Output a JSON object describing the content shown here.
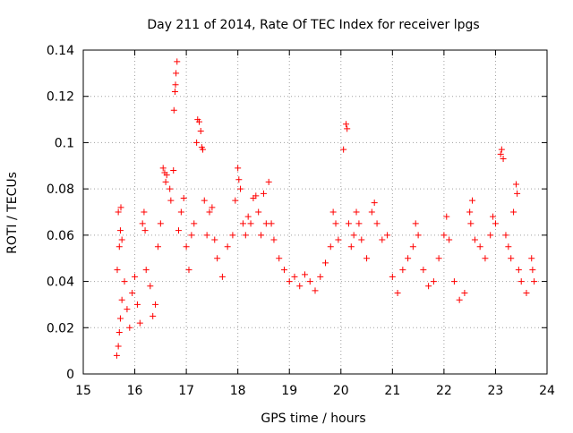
{
  "chart_data": {
    "type": "scatter",
    "title": "Day 211 of 2014, Rate Of TEC Index for receiver lpgs",
    "xlabel": "GPS time / hours",
    "ylabel": "ROTI / TECUs",
    "xlim": [
      15,
      24
    ],
    "ylim": [
      0,
      0.14
    ],
    "xticks": [
      "15",
      "16",
      "17",
      "18",
      "19",
      "20",
      "21",
      "22",
      "23",
      "24"
    ],
    "yticks": [
      "0",
      "0.02",
      "0.04",
      "0.06",
      "0.08",
      "0.1",
      "0.12",
      "0.14"
    ],
    "grid": true,
    "marker": "+",
    "color": "#ff0000",
    "series": [
      {
        "name": "ROTI",
        "points": [
          [
            15.65,
            0.008
          ],
          [
            15.68,
            0.012
          ],
          [
            15.7,
            0.018
          ],
          [
            15.72,
            0.024
          ],
          [
            15.75,
            0.032
          ],
          [
            15.66,
            0.045
          ],
          [
            15.7,
            0.055
          ],
          [
            15.72,
            0.062
          ],
          [
            15.68,
            0.07
          ],
          [
            15.73,
            0.072
          ],
          [
            15.75,
            0.058
          ],
          [
            15.8,
            0.04
          ],
          [
            15.85,
            0.028
          ],
          [
            15.9,
            0.02
          ],
          [
            15.95,
            0.035
          ],
          [
            16.0,
            0.042
          ],
          [
            16.05,
            0.03
          ],
          [
            16.1,
            0.022
          ],
          [
            16.15,
            0.065
          ],
          [
            16.18,
            0.07
          ],
          [
            16.2,
            0.062
          ],
          [
            16.22,
            0.045
          ],
          [
            16.3,
            0.038
          ],
          [
            16.35,
            0.025
          ],
          [
            16.4,
            0.03
          ],
          [
            16.45,
            0.055
          ],
          [
            16.5,
            0.065
          ],
          [
            16.55,
            0.089
          ],
          [
            16.58,
            0.087
          ],
          [
            16.6,
            0.083
          ],
          [
            16.62,
            0.086
          ],
          [
            16.68,
            0.08
          ],
          [
            16.7,
            0.075
          ],
          [
            16.75,
            0.088
          ],
          [
            16.76,
            0.114
          ],
          [
            16.78,
            0.122
          ],
          [
            16.8,
            0.13
          ],
          [
            16.82,
            0.135
          ],
          [
            16.79,
            0.125
          ],
          [
            16.85,
            0.062
          ],
          [
            16.9,
            0.07
          ],
          [
            16.95,
            0.076
          ],
          [
            17.0,
            0.055
          ],
          [
            17.05,
            0.045
          ],
          [
            17.1,
            0.06
          ],
          [
            17.15,
            0.065
          ],
          [
            17.2,
            0.1
          ],
          [
            17.22,
            0.11
          ],
          [
            17.25,
            0.109
          ],
          [
            17.28,
            0.105
          ],
          [
            17.3,
            0.098
          ],
          [
            17.32,
            0.097
          ],
          [
            17.35,
            0.075
          ],
          [
            17.4,
            0.06
          ],
          [
            17.45,
            0.07
          ],
          [
            17.5,
            0.072
          ],
          [
            17.55,
            0.058
          ],
          [
            17.6,
            0.05
          ],
          [
            17.7,
            0.042
          ],
          [
            17.8,
            0.055
          ],
          [
            17.9,
            0.06
          ],
          [
            17.95,
            0.075
          ],
          [
            18.0,
            0.089
          ],
          [
            18.02,
            0.084
          ],
          [
            18.05,
            0.08
          ],
          [
            18.1,
            0.065
          ],
          [
            18.15,
            0.06
          ],
          [
            18.2,
            0.068
          ],
          [
            18.25,
            0.065
          ],
          [
            18.3,
            0.076
          ],
          [
            18.35,
            0.077
          ],
          [
            18.4,
            0.07
          ],
          [
            18.45,
            0.06
          ],
          [
            18.5,
            0.078
          ],
          [
            18.55,
            0.065
          ],
          [
            18.6,
            0.083
          ],
          [
            18.65,
            0.065
          ],
          [
            18.7,
            0.058
          ],
          [
            18.8,
            0.05
          ],
          [
            18.9,
            0.045
          ],
          [
            19.0,
            0.04
          ],
          [
            19.1,
            0.042
          ],
          [
            19.2,
            0.038
          ],
          [
            19.3,
            0.043
          ],
          [
            19.4,
            0.04
          ],
          [
            19.5,
            0.036
          ],
          [
            19.6,
            0.042
          ],
          [
            19.7,
            0.048
          ],
          [
            19.8,
            0.055
          ],
          [
            19.85,
            0.07
          ],
          [
            19.9,
            0.065
          ],
          [
            19.95,
            0.058
          ],
          [
            20.05,
            0.097
          ],
          [
            20.1,
            0.108
          ],
          [
            20.12,
            0.106
          ],
          [
            20.15,
            0.065
          ],
          [
            20.2,
            0.055
          ],
          [
            20.25,
            0.06
          ],
          [
            20.3,
            0.07
          ],
          [
            20.35,
            0.065
          ],
          [
            20.4,
            0.058
          ],
          [
            20.5,
            0.05
          ],
          [
            20.6,
            0.07
          ],
          [
            20.65,
            0.074
          ],
          [
            20.7,
            0.065
          ],
          [
            20.8,
            0.058
          ],
          [
            20.9,
            0.06
          ],
          [
            21.0,
            0.042
          ],
          [
            21.1,
            0.035
          ],
          [
            21.2,
            0.045
          ],
          [
            21.3,
            0.05
          ],
          [
            21.4,
            0.055
          ],
          [
            21.45,
            0.065
          ],
          [
            21.5,
            0.06
          ],
          [
            21.6,
            0.045
          ],
          [
            21.7,
            0.038
          ],
          [
            21.8,
            0.04
          ],
          [
            21.9,
            0.05
          ],
          [
            22.0,
            0.06
          ],
          [
            22.05,
            0.068
          ],
          [
            22.1,
            0.058
          ],
          [
            22.2,
            0.04
          ],
          [
            22.3,
            0.032
          ],
          [
            22.4,
            0.035
          ],
          [
            22.5,
            0.07
          ],
          [
            22.52,
            0.065
          ],
          [
            22.55,
            0.075
          ],
          [
            22.6,
            0.058
          ],
          [
            22.7,
            0.055
          ],
          [
            22.8,
            0.05
          ],
          [
            22.9,
            0.06
          ],
          [
            22.95,
            0.068
          ],
          [
            23.0,
            0.065
          ],
          [
            23.1,
            0.095
          ],
          [
            23.12,
            0.097
          ],
          [
            23.15,
            0.093
          ],
          [
            23.2,
            0.06
          ],
          [
            23.25,
            0.055
          ],
          [
            23.3,
            0.05
          ],
          [
            23.35,
            0.07
          ],
          [
            23.4,
            0.082
          ],
          [
            23.42,
            0.078
          ],
          [
            23.45,
            0.045
          ],
          [
            23.5,
            0.04
          ],
          [
            23.6,
            0.035
          ],
          [
            23.7,
            0.05
          ],
          [
            23.72,
            0.045
          ],
          [
            23.75,
            0.04
          ]
        ]
      }
    ]
  }
}
